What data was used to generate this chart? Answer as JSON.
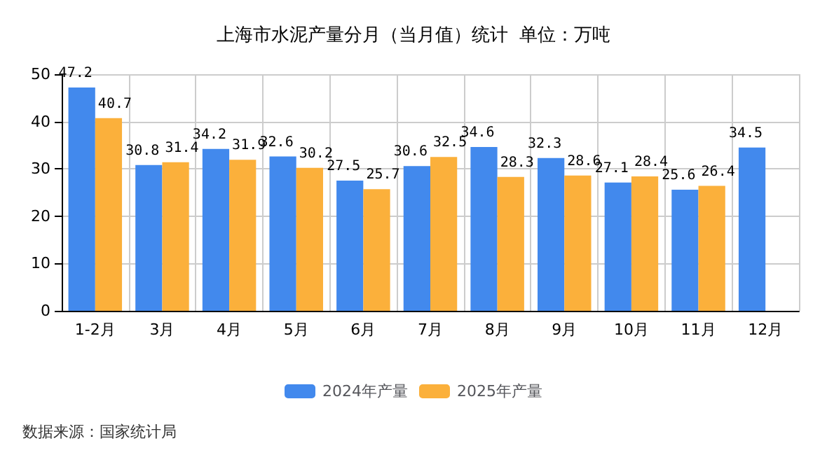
{
  "chart_data": {
    "type": "bar",
    "title": "上海市水泥产量分月（当月值）统计  单位：万吨",
    "categories": [
      "1-2月",
      "3月",
      "4月",
      "5月",
      "6月",
      "7月",
      "8月",
      "9月",
      "10月",
      "11月",
      "12月"
    ],
    "series": [
      {
        "name": "2024年产量",
        "color": "#4289ed",
        "values": [
          47.2,
          30.8,
          34.2,
          32.6,
          27.5,
          30.6,
          34.6,
          32.3,
          27.1,
          25.6,
          34.5
        ]
      },
      {
        "name": "2025年产量",
        "color": "#fbb03b",
        "values": [
          40.7,
          31.4,
          31.9,
          30.2,
          25.7,
          32.5,
          28.3,
          28.6,
          28.4,
          26.4,
          null
        ]
      }
    ],
    "ylim": [
      0,
      50
    ],
    "yticks": [
      0,
      10,
      20,
      30,
      40,
      50
    ],
    "grid": true,
    "legend": "bottom",
    "data_labels": true,
    "annotations": [
      "数据来源：国家统计局"
    ]
  }
}
